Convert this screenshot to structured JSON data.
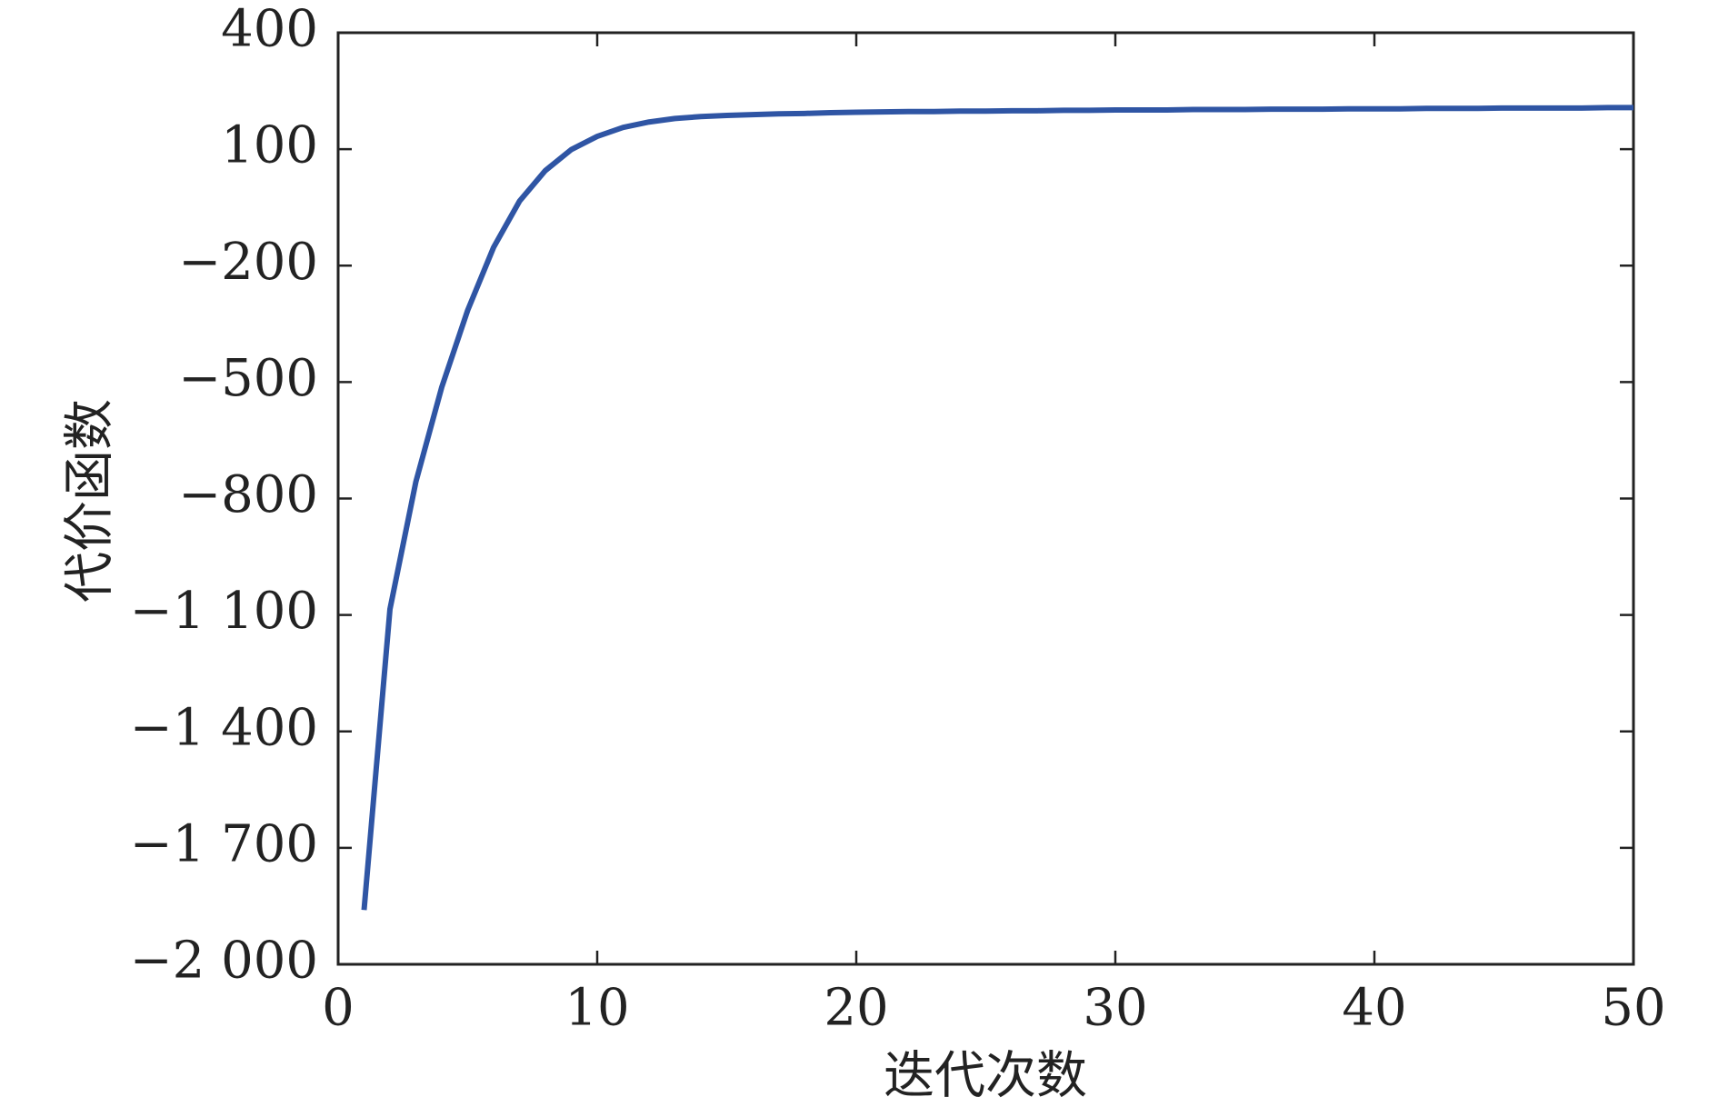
{
  "chart_data": {
    "type": "line",
    "x_label": "迭代次数",
    "y_label": "代价函数",
    "x": [
      1,
      2,
      3,
      4,
      5,
      6,
      7,
      8,
      9,
      10,
      11,
      12,
      13,
      14,
      15,
      16,
      17,
      18,
      19,
      20,
      21,
      22,
      23,
      24,
      25,
      26,
      27,
      28,
      29,
      30,
      31,
      32,
      33,
      34,
      35,
      36,
      37,
      38,
      39,
      40,
      41,
      42,
      43,
      44,
      45,
      46,
      47,
      48,
      49,
      50
    ],
    "series": [
      {
        "color": "#2f55a4",
        "values": [
          -1860,
          -1085,
          -757,
          -513,
          -315,
          -153,
          -34,
          45,
          99,
          133,
          156,
          170,
          179,
          184,
          187,
          189,
          191,
          192,
          194,
          195,
          196,
          197,
          197,
          198,
          198,
          199,
          199,
          200,
          200,
          201,
          201,
          201,
          202,
          202,
          202,
          203,
          203,
          203,
          204,
          204,
          204,
          205,
          205,
          205,
          206,
          206,
          206,
          206,
          207,
          207
        ]
      }
    ],
    "xlim": [
      0,
      50
    ],
    "xticks": [
      0,
      10,
      20,
      30,
      40,
      50
    ],
    "ylim": [
      -2000,
      400
    ],
    "yticks": [
      {
        "value": -2000,
        "label": "−2 000"
      },
      {
        "value": -1700,
        "label": "−1 700"
      },
      {
        "value": -1400,
        "label": "−1 400"
      },
      {
        "value": -1100,
        "label": "−1 100"
      },
      {
        "value": -800,
        "label": "−800"
      },
      {
        "value": -500,
        "label": "−500"
      },
      {
        "value": -200,
        "label": "−200"
      },
      100,
      400
    ],
    "grid": false
  }
}
